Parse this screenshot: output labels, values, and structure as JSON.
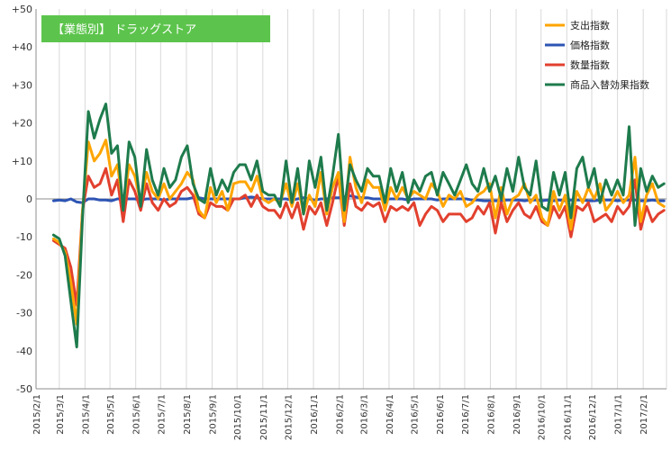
{
  "chart_data": {
    "type": "line",
    "title": "【業態別】 ドラッグストア",
    "title_box_color": "#5cc44c",
    "xlabel": "",
    "ylabel": "",
    "ylim": [
      -50,
      50
    ],
    "yticks": [
      "+50",
      "+40",
      "+30",
      "+20",
      "+10",
      "0",
      "-10",
      "-20",
      "-30",
      "-40",
      "-50"
    ],
    "xlim": [
      "2015-02-01",
      "2017-02-28"
    ],
    "x_tick_labels": [
      "2015/2/1",
      "2015/3/1",
      "2015/4/1",
      "2015/5/1",
      "2015/6/1",
      "2015/7/1",
      "2015/8/1",
      "2015/9/1",
      "2015/10/1",
      "2015/11/1",
      "2015/12/1",
      "2016/1/1",
      "2016/2/1",
      "2016/3/1",
      "2016/4/1",
      "2016/5/1",
      "2016/6/1",
      "2016/7/1",
      "2016/8/1",
      "2016/9/1",
      "2016/10/1",
      "2016/11/1",
      "2016/12/1",
      "2017/1/1",
      "2017/2/1"
    ],
    "grid": "vertical",
    "legend_position": "top-right",
    "series": [
      {
        "name": "支出指数",
        "color": "#ffa500",
        "x": [
          "2015-02-22",
          "2015-03-01",
          "2015-03-08",
          "2015-03-15",
          "2015-03-22",
          "2015-03-29",
          "2015-04-05",
          "2015-04-12",
          "2015-04-19",
          "2015-04-26",
          "2015-05-03",
          "2015-05-10",
          "2015-05-17",
          "2015-05-24",
          "2015-05-31",
          "2015-06-07",
          "2015-06-14",
          "2015-06-21",
          "2015-06-28",
          "2015-07-05",
          "2015-07-12",
          "2015-07-19",
          "2015-07-26",
          "2015-08-02",
          "2015-08-09",
          "2015-08-16",
          "2015-08-23",
          "2015-08-30",
          "2015-09-06",
          "2015-09-13",
          "2015-09-20",
          "2015-09-27",
          "2015-10-04",
          "2015-10-11",
          "2015-10-18",
          "2015-10-25",
          "2015-11-01",
          "2015-11-08",
          "2015-11-15",
          "2015-11-22",
          "2015-11-29",
          "2015-12-06",
          "2015-12-13",
          "2015-12-20",
          "2015-12-27",
          "2016-01-03",
          "2016-01-10",
          "2016-01-17",
          "2016-01-24",
          "2016-01-31",
          "2016-02-07",
          "2016-02-14",
          "2016-02-21",
          "2016-02-28",
          "2016-03-06",
          "2016-03-13",
          "2016-03-20",
          "2016-03-27",
          "2016-04-03",
          "2016-04-10",
          "2016-04-17",
          "2016-04-24",
          "2016-05-01",
          "2016-05-08",
          "2016-05-15",
          "2016-05-22",
          "2016-05-29",
          "2016-06-05",
          "2016-06-12",
          "2016-06-19",
          "2016-06-26",
          "2016-07-03",
          "2016-07-10",
          "2016-07-17",
          "2016-07-24",
          "2016-07-31",
          "2016-08-07",
          "2016-08-14",
          "2016-08-21",
          "2016-08-28",
          "2016-09-04",
          "2016-09-11",
          "2016-09-18",
          "2016-09-25",
          "2016-10-02",
          "2016-10-09",
          "2016-10-16",
          "2016-10-23",
          "2016-10-30",
          "2016-11-06",
          "2016-11-13",
          "2016-11-20",
          "2016-11-27",
          "2016-12-04",
          "2016-12-11",
          "2016-12-18",
          "2016-12-25",
          "2017-01-01",
          "2017-01-08",
          "2017-01-15",
          "2017-01-22",
          "2017-01-29",
          "2017-02-05",
          "2017-02-12",
          "2017-02-19",
          "2017-02-26"
        ],
        "values": [
          -10.5,
          -11.5,
          -14,
          -22,
          -33,
          -3,
          15,
          10,
          12,
          15.5,
          6,
          9,
          -2,
          9,
          6,
          -1,
          7,
          2,
          0,
          4,
          0,
          2,
          4,
          7,
          5,
          -3,
          -5,
          3,
          -1,
          2,
          -3,
          4,
          4.5,
          4.5,
          2,
          6,
          0,
          -1,
          0,
          -1,
          4,
          -2,
          4,
          -4,
          1,
          -2,
          7,
          -4,
          3,
          7,
          -6,
          11,
          3,
          -1,
          5,
          3,
          3,
          -3,
          3,
          0,
          3,
          0,
          2,
          1,
          0,
          4,
          2,
          -2,
          1,
          0,
          2,
          -2,
          -1,
          1,
          2,
          4,
          -5,
          3,
          -4,
          0,
          1,
          4,
          -1,
          1,
          -5,
          -7,
          2,
          -3,
          1,
          -8,
          2,
          -1,
          3,
          0,
          4,
          -3,
          -1,
          2,
          -1,
          1,
          11,
          -6,
          1,
          4,
          -1,
          -2
        ]
      },
      {
        "name": "価格指数",
        "color": "#2d54b4",
        "x": [
          "2015-02-22",
          "2015-03-01",
          "2015-03-08",
          "2015-03-15",
          "2015-03-22",
          "2015-03-29",
          "2015-04-05",
          "2015-04-12",
          "2015-04-19",
          "2015-04-26",
          "2015-05-03",
          "2015-05-10",
          "2015-05-17",
          "2015-05-24",
          "2015-05-31",
          "2015-06-07",
          "2015-06-14",
          "2015-06-21",
          "2015-06-28",
          "2015-07-05",
          "2015-07-12",
          "2015-07-19",
          "2015-07-26",
          "2015-08-02",
          "2015-08-09",
          "2015-08-16",
          "2015-08-23",
          "2015-08-30",
          "2015-09-06",
          "2015-09-13",
          "2015-09-20",
          "2015-09-27",
          "2015-10-04",
          "2015-10-11",
          "2015-10-18",
          "2015-10-25",
          "2015-11-01",
          "2015-11-08",
          "2015-11-15",
          "2015-11-22",
          "2015-11-29",
          "2015-12-06",
          "2015-12-13",
          "2015-12-20",
          "2015-12-27",
          "2016-01-03",
          "2016-01-10",
          "2016-01-17",
          "2016-01-24",
          "2016-01-31",
          "2016-02-07",
          "2016-02-14",
          "2016-02-21",
          "2016-02-28",
          "2016-03-06",
          "2016-03-13",
          "2016-03-20",
          "2016-03-27",
          "2016-04-03",
          "2016-04-10",
          "2016-04-17",
          "2016-04-24",
          "2016-05-01",
          "2016-05-08",
          "2016-05-15",
          "2016-05-22",
          "2016-05-29",
          "2016-06-05",
          "2016-06-12",
          "2016-06-19",
          "2016-06-26",
          "2016-07-03",
          "2016-07-10",
          "2016-07-17",
          "2016-07-24",
          "2016-07-31",
          "2016-08-07",
          "2016-08-14",
          "2016-08-21",
          "2016-08-28",
          "2016-09-04",
          "2016-09-11",
          "2016-09-18",
          "2016-09-25",
          "2016-10-02",
          "2016-10-09",
          "2016-10-16",
          "2016-10-23",
          "2016-10-30",
          "2016-11-06",
          "2016-11-13",
          "2016-11-20",
          "2016-11-27",
          "2016-12-04",
          "2016-12-11",
          "2016-12-18",
          "2016-12-25",
          "2017-01-01",
          "2017-01-08",
          "2017-01-15",
          "2017-01-22",
          "2017-01-29",
          "2017-02-05",
          "2017-02-12",
          "2017-02-19",
          "2017-02-26"
        ],
        "values": [
          -0.5,
          -0.3,
          -0.5,
          0,
          -0.8,
          -1,
          0,
          0,
          -0.3,
          -0.3,
          -0.5,
          0,
          0,
          0,
          0,
          -0.3,
          0,
          0,
          0,
          -0.3,
          0,
          0,
          0,
          0,
          0.3,
          0.3,
          0,
          0,
          0,
          0,
          0,
          0,
          0,
          0.3,
          0.5,
          0.3,
          0,
          0,
          0,
          0,
          0,
          -0.3,
          0,
          0.3,
          0,
          -0.3,
          0,
          0,
          0.3,
          0.3,
          0.5,
          0.8,
          0.5,
          0.3,
          0.3,
          0,
          0,
          0,
          0,
          0,
          0,
          -0.3,
          0,
          0,
          0,
          0,
          -0.3,
          0,
          0,
          0,
          0,
          0,
          -0.3,
          -0.3,
          -0.5,
          -0.5,
          -0.5,
          -0.5,
          -0.3,
          -0.3,
          -0.3,
          -0.5,
          -0.3,
          -0.3,
          -0.5,
          -0.3,
          -0.5,
          -0.3,
          -0.5,
          -0.3,
          -0.3,
          -0.3,
          -0.5,
          -0.5,
          -0.3,
          -0.3,
          -0.3,
          -0.5,
          -0.3,
          -0.3,
          -0.3,
          -0.5,
          -0.5,
          -0.3,
          -0.5,
          -0.5
        ]
      },
      {
        "name": "数量指数",
        "color": "#e2402e",
        "x": [
          "2015-02-22",
          "2015-03-01",
          "2015-03-08",
          "2015-03-15",
          "2015-03-22",
          "2015-03-29",
          "2015-04-05",
          "2015-04-12",
          "2015-04-19",
          "2015-04-26",
          "2015-05-03",
          "2015-05-10",
          "2015-05-17",
          "2015-05-24",
          "2015-05-31",
          "2015-06-07",
          "2015-06-14",
          "2015-06-21",
          "2015-06-28",
          "2015-07-05",
          "2015-07-12",
          "2015-07-19",
          "2015-07-26",
          "2015-08-02",
          "2015-08-09",
          "2015-08-16",
          "2015-08-23",
          "2015-08-30",
          "2015-09-06",
          "2015-09-13",
          "2015-09-20",
          "2015-09-27",
          "2015-10-04",
          "2015-10-11",
          "2015-10-18",
          "2015-10-25",
          "2015-11-01",
          "2015-11-08",
          "2015-11-15",
          "2015-11-22",
          "2015-11-29",
          "2015-12-06",
          "2015-12-13",
          "2015-12-20",
          "2015-12-27",
          "2016-01-03",
          "2016-01-10",
          "2016-01-17",
          "2016-01-24",
          "2016-01-31",
          "2016-02-07",
          "2016-02-14",
          "2016-02-21",
          "2016-02-28",
          "2016-03-06",
          "2016-03-13",
          "2016-03-20",
          "2016-03-27",
          "2016-04-03",
          "2016-04-10",
          "2016-04-17",
          "2016-04-24",
          "2016-05-01",
          "2016-05-08",
          "2016-05-15",
          "2016-05-22",
          "2016-05-29",
          "2016-06-05",
          "2016-06-12",
          "2016-06-19",
          "2016-06-26",
          "2016-07-03",
          "2016-07-10",
          "2016-07-17",
          "2016-07-24",
          "2016-07-31",
          "2016-08-07",
          "2016-08-14",
          "2016-08-21",
          "2016-08-28",
          "2016-09-04",
          "2016-09-11",
          "2016-09-18",
          "2016-09-25",
          "2016-10-02",
          "2016-10-09",
          "2016-10-16",
          "2016-10-23",
          "2016-10-30",
          "2016-11-06",
          "2016-11-13",
          "2016-11-20",
          "2016-11-27",
          "2016-12-04",
          "2016-12-11",
          "2016-12-18",
          "2016-12-25",
          "2017-01-01",
          "2017-01-08",
          "2017-01-15",
          "2017-01-22",
          "2017-01-29",
          "2017-02-05",
          "2017-02-12",
          "2017-02-19",
          "2017-02-26"
        ],
        "values": [
          -11,
          -12,
          -13,
          -18,
          -28,
          -3,
          6,
          3,
          4,
          8,
          1,
          5,
          -6,
          5,
          2,
          -3,
          4,
          -1,
          -3,
          0,
          -2,
          -1,
          2,
          3,
          1,
          -4,
          -5,
          -1,
          -2,
          -2,
          -3,
          0,
          0,
          1,
          -2,
          1,
          -2,
          -3,
          -3,
          -5,
          -1,
          -5,
          -1,
          -8,
          -2,
          -4,
          -1,
          -7,
          -1,
          6,
          -7,
          4,
          -2,
          -3,
          -1,
          -2,
          -1,
          -6,
          -2,
          -3,
          -2,
          -3,
          -1,
          -7,
          -4,
          -2,
          -3,
          -6,
          -4,
          -4,
          -4,
          -6,
          -5,
          -2,
          -4,
          -1,
          -9,
          -1,
          -6,
          -3,
          -1,
          -4,
          -5,
          -2,
          -6,
          -7,
          -2,
          -5,
          -2,
          -10,
          -2,
          -3,
          -1,
          -6,
          -5,
          -4,
          -6,
          -2,
          -4,
          -2,
          5,
          -8,
          -2,
          -6,
          -4,
          -3
        ]
      },
      {
        "name": "商品入替効果指数",
        "color": "#1e7b4c",
        "x": [
          "2015-02-22",
          "2015-03-01",
          "2015-03-08",
          "2015-03-15",
          "2015-03-22",
          "2015-03-29",
          "2015-04-05",
          "2015-04-12",
          "2015-04-19",
          "2015-04-26",
          "2015-05-03",
          "2015-05-10",
          "2015-05-17",
          "2015-05-24",
          "2015-05-31",
          "2015-06-07",
          "2015-06-14",
          "2015-06-21",
          "2015-06-28",
          "2015-07-05",
          "2015-07-12",
          "2015-07-19",
          "2015-07-26",
          "2015-08-02",
          "2015-08-09",
          "2015-08-16",
          "2015-08-23",
          "2015-08-30",
          "2015-09-06",
          "2015-09-13",
          "2015-09-20",
          "2015-09-27",
          "2015-10-04",
          "2015-10-11",
          "2015-10-18",
          "2015-10-25",
          "2015-11-01",
          "2015-11-08",
          "2015-11-15",
          "2015-11-22",
          "2015-11-29",
          "2015-12-06",
          "2015-12-13",
          "2015-12-20",
          "2015-12-27",
          "2016-01-03",
          "2016-01-10",
          "2016-01-17",
          "2016-01-24",
          "2016-01-31",
          "2016-02-07",
          "2016-02-14",
          "2016-02-21",
          "2016-02-28",
          "2016-03-06",
          "2016-03-13",
          "2016-03-20",
          "2016-03-27",
          "2016-04-03",
          "2016-04-10",
          "2016-04-17",
          "2016-04-24",
          "2016-05-01",
          "2016-05-08",
          "2016-05-15",
          "2016-05-22",
          "2016-05-29",
          "2016-06-05",
          "2016-06-12",
          "2016-06-19",
          "2016-06-26",
          "2016-07-03",
          "2016-07-10",
          "2016-07-17",
          "2016-07-24",
          "2016-07-31",
          "2016-08-07",
          "2016-08-14",
          "2016-08-21",
          "2016-08-28",
          "2016-09-04",
          "2016-09-11",
          "2016-09-18",
          "2016-09-25",
          "2016-10-02",
          "2016-10-09",
          "2016-10-16",
          "2016-10-23",
          "2016-10-30",
          "2016-11-06",
          "2016-11-13",
          "2016-11-20",
          "2016-11-27",
          "2016-12-04",
          "2016-12-11",
          "2016-12-18",
          "2016-12-25",
          "2017-01-01",
          "2017-01-08",
          "2017-01-15",
          "2017-01-22",
          "2017-01-29",
          "2017-02-05",
          "2017-02-12",
          "2017-02-19",
          "2017-02-26"
        ],
        "values": [
          -9.5,
          -10.5,
          -15,
          -27,
          -39,
          -5,
          23,
          16,
          21,
          25,
          12,
          14,
          -3,
          15,
          11,
          -2,
          13,
          5,
          1,
          8,
          3,
          5,
          11,
          14,
          4,
          0,
          -1,
          8,
          1,
          5,
          2,
          7,
          9,
          9,
          5,
          10,
          2,
          1,
          1,
          -2,
          10,
          -1,
          8,
          -4,
          10,
          3,
          11,
          -3,
          6,
          17,
          -3,
          9,
          5,
          2,
          8,
          6,
          6,
          -1,
          8,
          2,
          7,
          -1,
          5,
          2,
          6,
          7,
          1,
          7,
          4,
          1,
          5,
          9,
          4,
          2,
          8,
          2,
          6,
          0,
          8,
          2,
          11,
          3,
          1,
          10,
          -2,
          -3,
          7,
          1,
          7,
          -5,
          8,
          11,
          3,
          8,
          -1,
          5,
          1,
          5,
          1,
          19,
          -7,
          8,
          2,
          6,
          3,
          4
        ]
      }
    ]
  }
}
